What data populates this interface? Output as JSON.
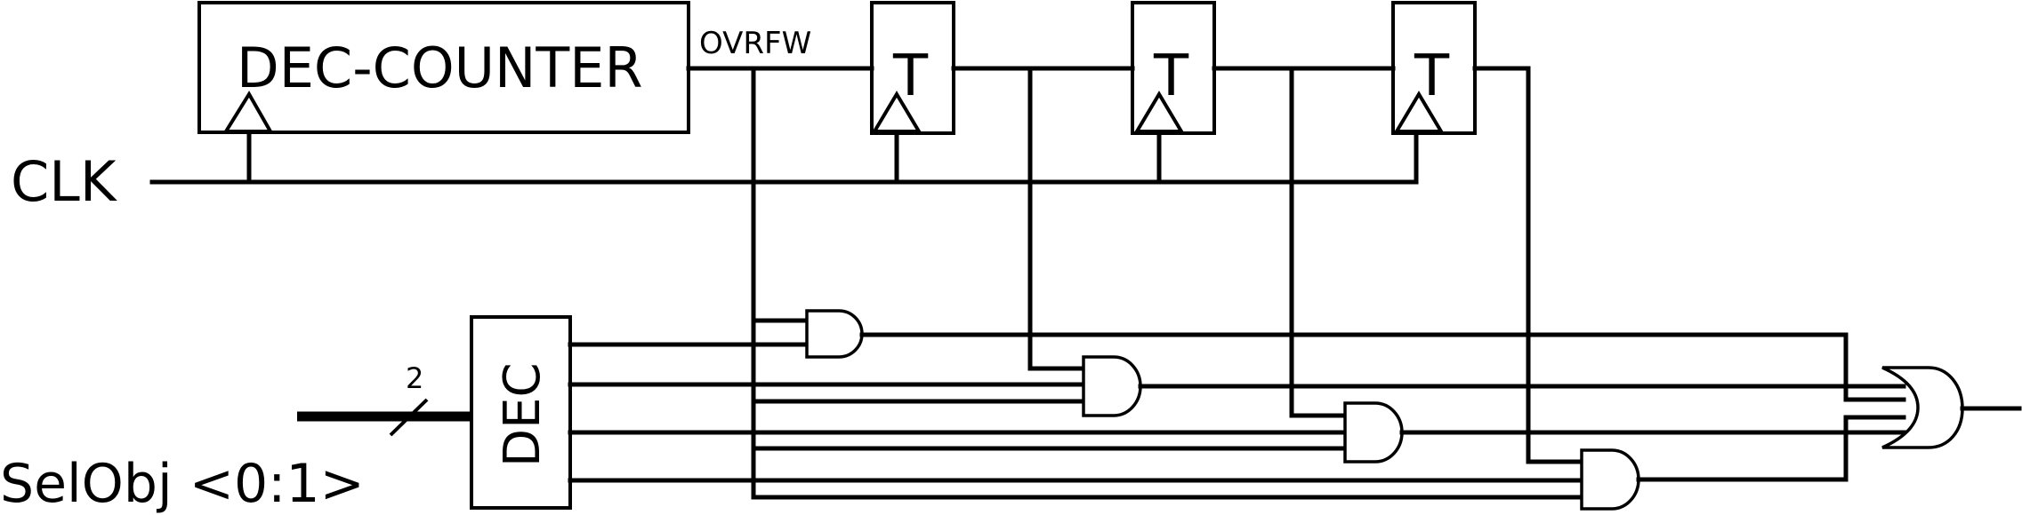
{
  "blocks": {
    "counter_label": "DEC-COUNTER",
    "overflow_label": "OVRFW",
    "t_labels": [
      "T",
      "T",
      "T"
    ],
    "decoder_label": "DEC"
  },
  "signals": {
    "clock": "CLK",
    "select": "SelObj <0:1>",
    "bus_width": "2"
  }
}
